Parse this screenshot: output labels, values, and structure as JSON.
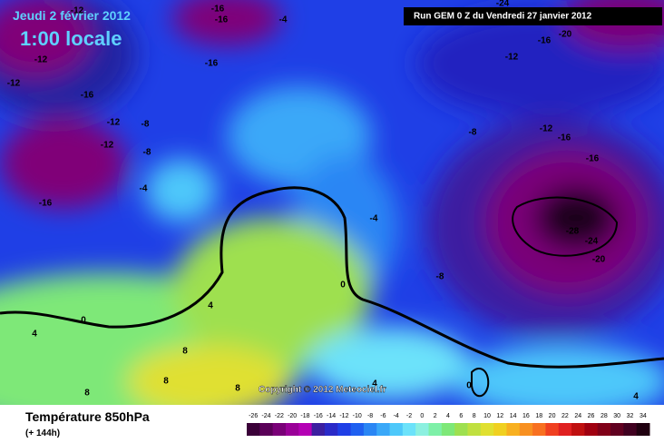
{
  "header": {
    "title": "Jeudi 2 février 2012",
    "time": "1:00 locale",
    "run": "Run GEM 0 Z du Vendredi 27 janvier 2012"
  },
  "copyright": "Copyright © 2012 Meteociel.fr",
  "contour_labels": [
    -12,
    -16,
    -16,
    -4,
    -12,
    -12,
    -16,
    -16,
    -12,
    -8,
    -12,
    -8,
    -4,
    -16,
    -24,
    -20,
    -16,
    -12,
    -8,
    -12,
    -16,
    -16,
    -28,
    -24,
    -20,
    -4,
    -8,
    0,
    4,
    0,
    4,
    8,
    8,
    8,
    8,
    0,
    4,
    4
  ],
  "legend": {
    "title": "Température 850hPa",
    "subtitle": "(+ 144h)",
    "ticks": [
      -26,
      -24,
      -22,
      -20,
      -18,
      -16,
      -14,
      -12,
      -10,
      -8,
      -6,
      -4,
      -2,
      0,
      2,
      4,
      6,
      8,
      10,
      12,
      14,
      16,
      18,
      20,
      22,
      24,
      26,
      28,
      30,
      32,
      34
    ],
    "colors": [
      "#3a0038",
      "#5a0058",
      "#7a0078",
      "#9a0098",
      "#b400b4",
      "#3c1fa0",
      "#2a2ac8",
      "#1f3fe6",
      "#1f60f0",
      "#2a86f4",
      "#3aa8f8",
      "#4ec8fa",
      "#6ce2fa",
      "#8cf0e0",
      "#7ef0a8",
      "#7ee878",
      "#9ee050",
      "#c0e040",
      "#e0e030",
      "#f0d020",
      "#f8b020",
      "#f89020",
      "#f87020",
      "#f04020",
      "#e02020",
      "#c01010",
      "#a00010",
      "#800018",
      "#600020",
      "#400020",
      "#200010"
    ]
  }
}
